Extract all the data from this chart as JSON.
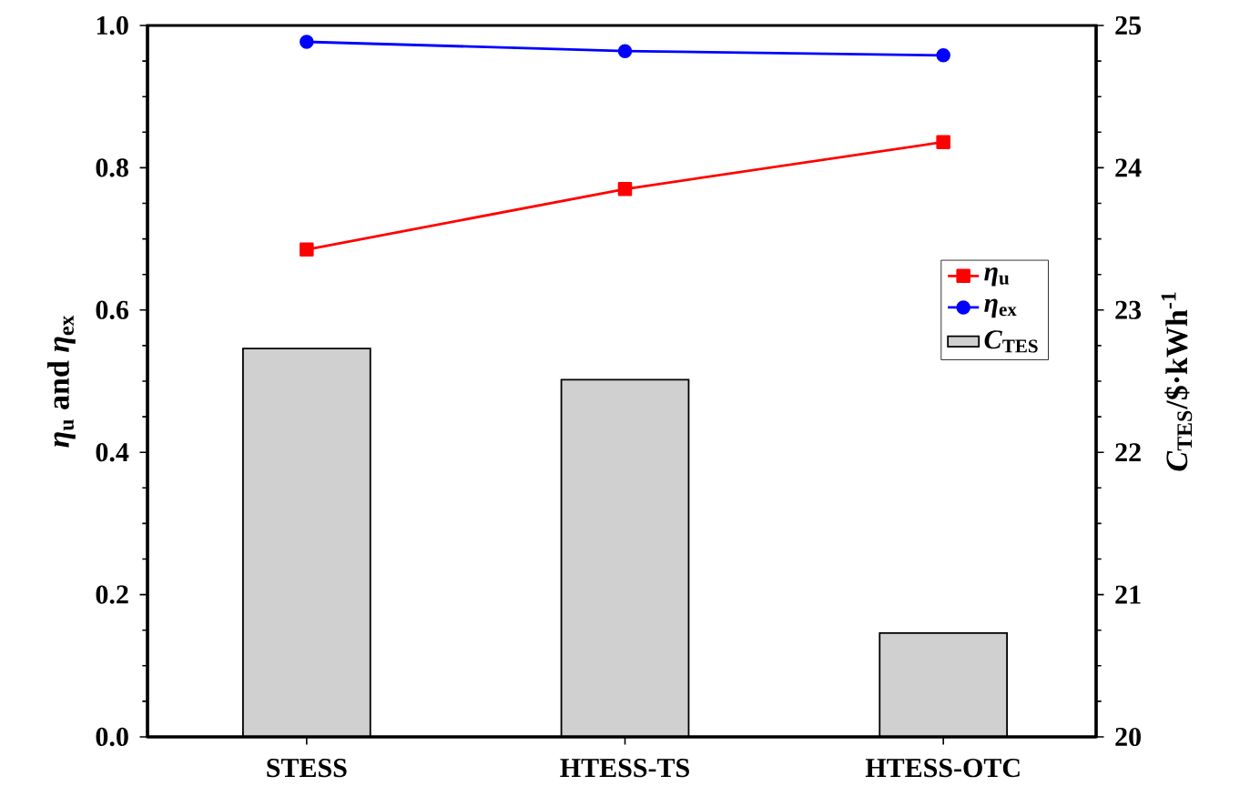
{
  "chart_data": {
    "type": "line",
    "categories": [
      "STESS",
      "HTESS-TS",
      "HTESS-OTC"
    ],
    "ylabel": "*η*$_{u}$ and *η*$_{ex}$",
    "y2label": "*C*$_{TES}$/$·kWh$^{-1}$",
    "ylim": [
      0,
      1
    ],
    "yticks": [
      {
        "value": 0,
        "label": "0.0"
      },
      {
        "value": 0.2,
        "label": "0.2"
      },
      {
        "value": 0.4,
        "label": "0.4"
      },
      {
        "value": 0.6,
        "label": "0.6"
      },
      {
        "value": 0.8,
        "label": "0.8"
      },
      {
        "value": 1,
        "label": "1.0"
      }
    ],
    "y2lim": [
      20,
      25
    ],
    "y2ticks": [
      20,
      21,
      22,
      23,
      24,
      25
    ],
    "legend": "right",
    "series": [
      {
        "name": "*η*$_{u}$",
        "color": "#ff0000",
        "marker": "square",
        "values": [
          0.685,
          0.77,
          0.836
        ]
      },
      {
        "name": "*η*$_{ex}$",
        "color": "#0000ff",
        "marker": "circle",
        "values": [
          0.977,
          0.964,
          0.958
        ]
      },
      {
        "name": "*C*$_{TES}$",
        "type": "bar",
        "axis": "y2",
        "color": "#d0d0d0",
        "values": [
          22.73,
          22.51,
          20.73
        ]
      }
    ]
  }
}
